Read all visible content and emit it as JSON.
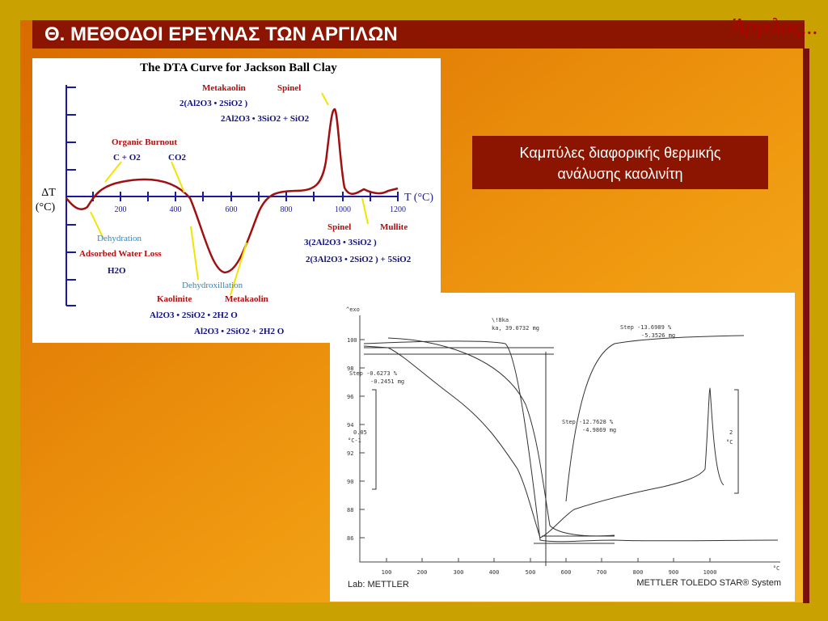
{
  "header": {
    "title": "Θ. ΜΕΘΟΔΟΙ ΕΡΕΥΝΑΣ ΤΩΝ ΑΡΓΙΛΩΝ",
    "logo": "Άργιλος..."
  },
  "caption": {
    "lines": [
      "Καμπύλες διαφορικής θερμικής",
      "ανάλυσης καολινίτη"
    ]
  },
  "figure_left": {
    "title": "The DTA Curve for Jackson Ball Clay",
    "y_label": [
      "ΔT",
      "(°C)"
    ],
    "x_label": "T (°C)",
    "x_ticks": [
      "200",
      "400",
      "600",
      "800",
      "1000",
      "1200"
    ],
    "annotations": [
      "Metakaolin",
      "Spinel",
      "2(Al2O3 • 2SiO2 )",
      "2Al2O3 • 3SiO2 + SiO2",
      "Organic Burnout",
      "C + O2",
      "CO2",
      "Spinel",
      "Mullite",
      "3(2Al2O3 • 3SiO2 )",
      "2(3Al2O3 • 2SiO2 ) + 5SiO2",
      "Dehydration",
      "Adsorbed Water Loss",
      "H2O",
      "Dehydroxillation",
      "Kaolinite",
      "Metakaolin",
      "Al2O3 • 2SiO2 • 2H2 O",
      "Al2O3 • 2SiO2 + 2H2 O"
    ]
  },
  "figure_right": {
    "y_title": "^exo",
    "y_ticks": [
      "100",
      "98",
      "96",
      "94",
      "92",
      "90",
      "88",
      "86"
    ],
    "x_ticks": [
      "100",
      "200",
      "300",
      "400",
      "500",
      "600",
      "700",
      "800",
      "900",
      "1000"
    ],
    "x_unit": "°C",
    "annotations": [
      "\\!8ka",
      "ka, 39.0732 mg",
      "Step -13.6989 %",
      "-5.3526 mg",
      "Step -0.6273 %",
      "-0.2451 mg",
      "Step -12.7628 %",
      "-4.9869 mg",
      "0.05",
      "°C-1",
      "2",
      "°C"
    ],
    "footer_left": "Lab: METTLER",
    "footer_right": "METTLER TOLEDO STAR® System"
  }
}
